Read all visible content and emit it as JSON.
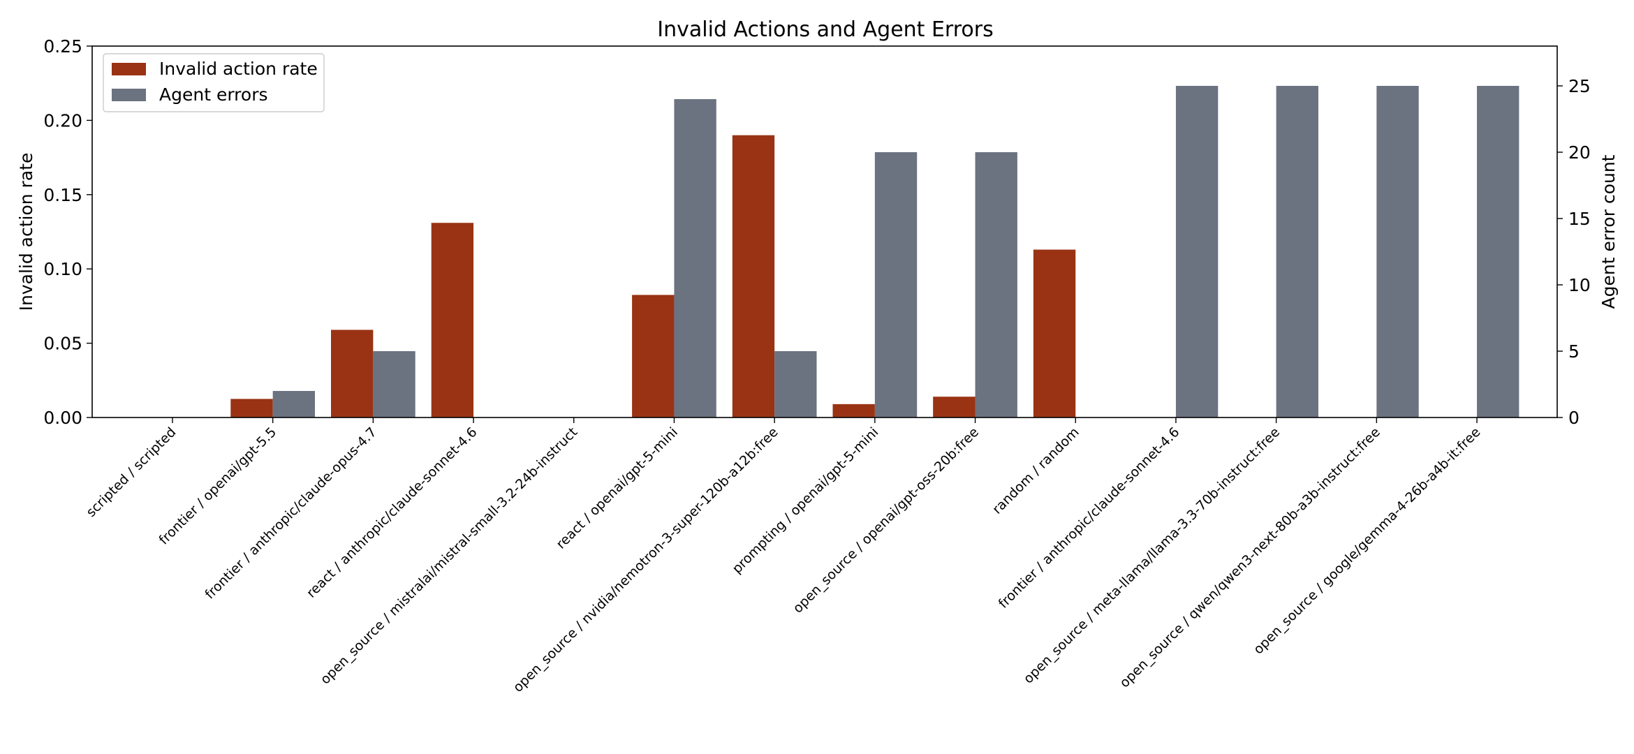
{
  "chart_data": {
    "type": "bar",
    "title": "Invalid Actions and Agent Errors",
    "ylabel": "Invalid action rate",
    "y2label": "Agent error count",
    "ylim": [
      0,
      0.25
    ],
    "y2lim": [
      0,
      28
    ],
    "yticks": [
      "0.00",
      "0.05",
      "0.10",
      "0.15",
      "0.20",
      "0.25"
    ],
    "y2ticks": [
      "0",
      "5",
      "10",
      "15",
      "20",
      "25"
    ],
    "grid": false,
    "legend_position": "top-left",
    "colors": {
      "invalid": "#993314",
      "errors": "#6b7280"
    },
    "categories": [
      "scripted / scripted",
      "frontier / openai/gpt-5.5",
      "frontier / anthropic/claude-opus-4.7",
      "react / anthropic/claude-sonnet-4.6",
      "open_source / mistralai/mistral-small-3.2-24b-instruct",
      "react / openai/gpt-5-mini",
      "open_source / nvidia/nemotron-3-super-120b-a12b:free",
      "prompting / openai/gpt-5-mini",
      "open_source / openai/gpt-oss-20b:free",
      "random / random",
      "frontier / anthropic/claude-sonnet-4.6",
      "open_source / meta-llama/llama-3.3-70b-instruct:free",
      "open_source / qwen/qwen3-next-80b-a3b-instruct:free",
      "open_source / google/gemma-4-26b-a4b-it:free"
    ],
    "series": [
      {
        "name": "Invalid action rate",
        "axis": "left",
        "values": [
          0,
          0.0125,
          0.059,
          0.131,
          0,
          0.0825,
          0.19,
          0.009,
          0.014,
          0.113,
          0,
          0,
          0,
          0
        ]
      },
      {
        "name": "Agent errors",
        "axis": "right",
        "values": [
          0,
          2,
          5,
          0,
          0,
          24,
          5,
          20,
          20,
          0,
          25,
          25,
          25,
          25
        ]
      }
    ]
  }
}
